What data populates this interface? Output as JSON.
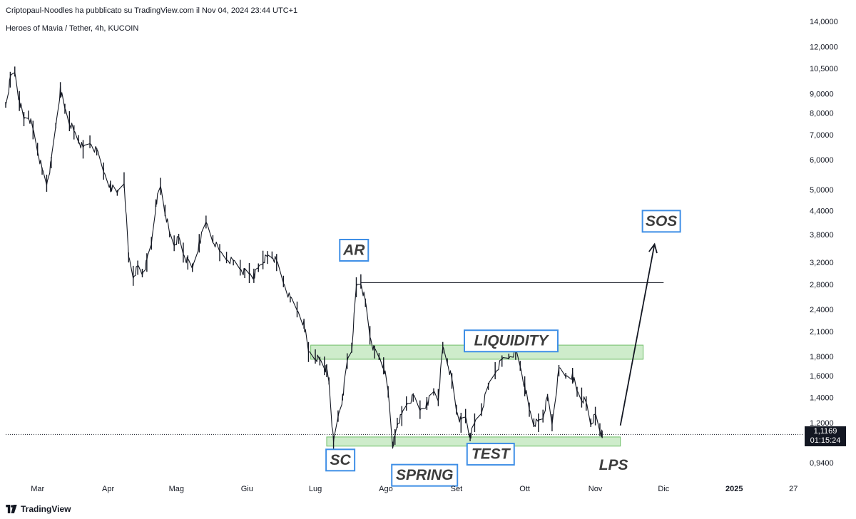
{
  "header": {
    "publisher": "Criptopaul-Noodles ha pubblicato su TradingView.com il Nov 04, 2024 23:44 UTC+1",
    "symbol": "Heroes of Mavia / Tether, 4h, KUCOIN"
  },
  "footer": {
    "brand": "TradingView"
  },
  "price_tag": {
    "price": "1,1169",
    "countdown": "01:15:24"
  },
  "colors": {
    "candles": "#131722",
    "zone_fill": "#a5dca0",
    "zone_border": "#6fbf68",
    "label_border": "#3f8fe6",
    "label_text": "#3d3d3d",
    "price_tag_bg": "#131722"
  },
  "chart_data": {
    "type": "line",
    "scale": "log",
    "ylim": [
      0.85,
      14.5
    ],
    "yticks": [
      {
        "label": "14,0000",
        "value": 14.0
      },
      {
        "label": "12,0000",
        "value": 12.0
      },
      {
        "label": "10,5000",
        "value": 10.5
      },
      {
        "label": "9,0000",
        "value": 9.0
      },
      {
        "label": "8,0000",
        "value": 8.0
      },
      {
        "label": "7,0000",
        "value": 7.0
      },
      {
        "label": "6,0000",
        "value": 6.0
      },
      {
        "label": "5,0000",
        "value": 5.0
      },
      {
        "label": "4,4000",
        "value": 4.4
      },
      {
        "label": "3,8000",
        "value": 3.8
      },
      {
        "label": "3,2000",
        "value": 3.2
      },
      {
        "label": "2,8000",
        "value": 2.8
      },
      {
        "label": "2,4000",
        "value": 2.4
      },
      {
        "label": "2,1000",
        "value": 2.1
      },
      {
        "label": "1,8000",
        "value": 1.8
      },
      {
        "label": "1,6000",
        "value": 1.6
      },
      {
        "label": "1,4000",
        "value": 1.4
      },
      {
        "label": "1,2000",
        "value": 1.2
      },
      {
        "label": "0,9400",
        "value": 0.94
      }
    ],
    "xlim": [
      "2024-02-16",
      "2025-01-31"
    ],
    "xticks": [
      {
        "label": "Mar",
        "date": "2024-03-01",
        "bold": false
      },
      {
        "label": "Apr",
        "date": "2024-04-01",
        "bold": false
      },
      {
        "label": "Mag",
        "date": "2024-05-01",
        "bold": false
      },
      {
        "label": "Giu",
        "date": "2024-06-01",
        "bold": false
      },
      {
        "label": "Lug",
        "date": "2024-07-01",
        "bold": false
      },
      {
        "label": "Ago",
        "date": "2024-08-01",
        "bold": false
      },
      {
        "label": "Set",
        "date": "2024-09-01",
        "bold": false
      },
      {
        "label": "Ott",
        "date": "2024-10-01",
        "bold": false
      },
      {
        "label": "Nov",
        "date": "2024-11-01",
        "bold": false
      },
      {
        "label": "Dic",
        "date": "2024-12-01",
        "bold": false
      },
      {
        "label": "2025",
        "date": "2025-01-01",
        "bold": true
      },
      {
        "label": "27",
        "date": "2025-01-27",
        "bold": false
      }
    ],
    "series": [
      {
        "x": [
          "2024-02-16",
          "2024-02-18",
          "2024-02-20",
          "2024-02-22",
          "2024-02-24",
          "2024-02-26",
          "2024-02-28",
          "2024-03-01",
          "2024-03-03",
          "2024-03-05",
          "2024-03-07",
          "2024-03-09",
          "2024-03-11",
          "2024-03-13",
          "2024-03-15",
          "2024-03-17",
          "2024-03-19",
          "2024-03-21",
          "2024-03-24",
          "2024-03-27",
          "2024-03-30",
          "2024-04-02",
          "2024-04-05",
          "2024-04-08",
          "2024-04-10",
          "2024-04-12",
          "2024-04-14",
          "2024-04-16",
          "2024-04-18",
          "2024-04-20",
          "2024-04-22",
          "2024-04-24",
          "2024-04-26",
          "2024-04-28",
          "2024-04-30",
          "2024-05-02",
          "2024-05-04",
          "2024-05-06",
          "2024-05-08",
          "2024-05-11",
          "2024-05-14",
          "2024-05-17",
          "2024-05-20",
          "2024-05-23",
          "2024-05-26",
          "2024-05-29",
          "2024-05-31",
          "2024-06-02",
          "2024-06-04",
          "2024-06-06",
          "2024-06-08",
          "2024-06-10",
          "2024-06-12",
          "2024-06-14",
          "2024-06-17",
          "2024-06-20",
          "2024-06-23",
          "2024-06-26",
          "2024-06-28",
          "2024-07-01",
          "2024-07-03",
          "2024-07-05",
          "2024-07-06",
          "2024-07-07",
          "2024-07-09",
          "2024-07-11",
          "2024-07-13",
          "2024-07-15",
          "2024-07-17",
          "2024-07-19",
          "2024-07-21",
          "2024-07-23",
          "2024-07-25",
          "2024-07-27",
          "2024-07-29",
          "2024-07-31",
          "2024-08-02",
          "2024-08-04",
          "2024-08-05",
          "2024-08-06",
          "2024-08-08",
          "2024-08-10",
          "2024-08-13",
          "2024-08-16",
          "2024-08-19",
          "2024-08-22",
          "2024-08-24",
          "2024-08-26",
          "2024-08-28",
          "2024-08-30",
          "2024-09-01",
          "2024-09-03",
          "2024-09-05",
          "2024-09-07",
          "2024-09-09",
          "2024-09-12",
          "2024-09-15",
          "2024-09-18",
          "2024-09-21",
          "2024-09-24",
          "2024-09-27",
          "2024-09-29",
          "2024-10-01",
          "2024-10-03",
          "2024-10-05",
          "2024-10-07",
          "2024-10-09",
          "2024-10-11",
          "2024-10-13",
          "2024-10-16",
          "2024-10-19",
          "2024-10-22",
          "2024-10-24",
          "2024-10-26",
          "2024-10-28",
          "2024-10-30",
          "2024-11-01",
          "2024-11-03",
          "2024-11-04"
        ],
        "y": [
          8.4,
          9.8,
          10.3,
          8.6,
          7.7,
          7.9,
          7.2,
          6.4,
          5.6,
          5.2,
          5.9,
          7.4,
          9.2,
          8.2,
          7.6,
          7.1,
          6.8,
          6.4,
          6.7,
          6.3,
          5.6,
          5.1,
          4.9,
          5.3,
          3.3,
          2.95,
          3.1,
          3.0,
          3.2,
          3.6,
          4.6,
          5.1,
          4.4,
          3.8,
          3.6,
          3.7,
          3.4,
          3.2,
          3.1,
          3.6,
          4.1,
          3.7,
          3.4,
          3.3,
          3.2,
          3.1,
          3.0,
          3.0,
          2.95,
          3.1,
          3.25,
          3.3,
          3.35,
          3.2,
          2.85,
          2.55,
          2.4,
          2.2,
          1.85,
          1.8,
          1.75,
          1.7,
          1.65,
          1.55,
          1.05,
          1.25,
          1.4,
          1.75,
          1.9,
          2.75,
          2.85,
          2.5,
          2.05,
          1.85,
          1.8,
          1.7,
          1.45,
          1.05,
          1.1,
          1.2,
          1.25,
          1.35,
          1.4,
          1.3,
          1.35,
          1.45,
          1.4,
          1.9,
          1.75,
          1.55,
          1.3,
          1.2,
          1.25,
          1.1,
          1.2,
          1.3,
          1.5,
          1.65,
          1.75,
          1.8,
          1.85,
          1.7,
          1.5,
          1.3,
          1.2,
          1.2,
          1.25,
          1.4,
          1.2,
          1.65,
          1.6,
          1.6,
          1.45,
          1.4,
          1.35,
          1.2,
          1.25,
          1.15,
          1.1169
        ]
      }
    ],
    "hlines": [
      {
        "from": "2024-07-21",
        "to": "2024-12-01",
        "value": 2.83
      }
    ],
    "zones": [
      {
        "from": "2024-06-29",
        "to": "2024-11-22",
        "low": 1.77,
        "high": 1.93
      },
      {
        "from": "2024-07-06",
        "to": "2024-11-12",
        "low": 1.04,
        "high": 1.1
      }
    ],
    "arrow": {
      "from_date": "2024-11-12",
      "from_value": 1.18,
      "to_date": "2024-11-27",
      "to_value": 3.58
    },
    "annotations": [
      {
        "text": "SC",
        "date": "2024-07-12",
        "value": 0.955,
        "boxed": true
      },
      {
        "text": "AR",
        "date": "2024-07-18",
        "value": 3.45,
        "boxed": true
      },
      {
        "text": "SPRING",
        "date": "2024-08-18",
        "value": 0.87,
        "boxed": true
      },
      {
        "text": "LIQUIDITY",
        "date": "2024-09-25",
        "value": 1.98,
        "boxed": true
      },
      {
        "text": "TEST",
        "date": "2024-09-16",
        "value": 0.99,
        "boxed": true
      },
      {
        "text": "LPS",
        "date": "2024-11-09",
        "value": 0.925,
        "boxed": false
      },
      {
        "text": "SOS",
        "date": "2024-11-30",
        "value": 4.12,
        "boxed": true
      }
    ],
    "last_price": 1.1169
  }
}
